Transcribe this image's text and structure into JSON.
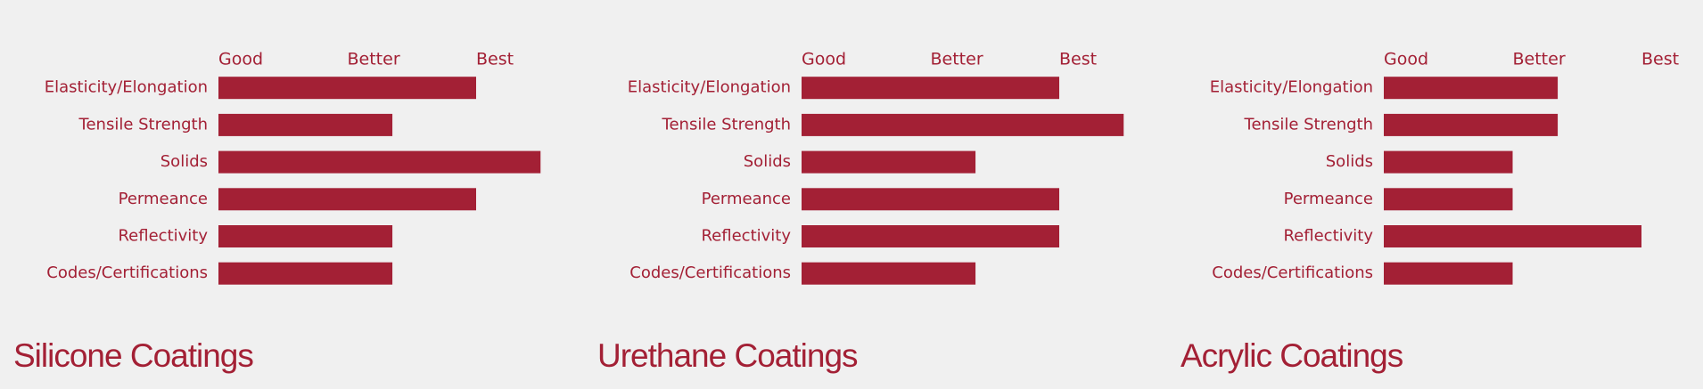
{
  "chart_data": [
    {
      "type": "bar",
      "orientation": "horizontal",
      "title": "Silicone Coatings",
      "color": "#a32035",
      "categories": [
        "Elasticity/Elongation",
        "Tensile Strength",
        "Solids",
        "Permeance",
        "Reflectivity",
        "Codes/Certifications"
      ],
      "values": [
        2,
        1.35,
        2.5,
        2,
        1.35,
        1.35
      ],
      "xlim": [
        0,
        2.5
      ],
      "xticks": [
        {
          "value": 0,
          "label": "Good"
        },
        {
          "value": 1,
          "label": "Better"
        },
        {
          "value": 2,
          "label": "Best"
        }
      ]
    },
    {
      "type": "bar",
      "orientation": "horizontal",
      "title": "Urethane Coatings",
      "color": "#a32035",
      "categories": [
        "Elasticity/Elongation",
        "Tensile Strength",
        "Solids",
        "Permeance",
        "Reflectivity",
        "Codes/Certifications"
      ],
      "values": [
        2,
        2.5,
        1.35,
        2,
        2,
        1.35
      ],
      "xlim": [
        0,
        2.5
      ],
      "xticks": [
        {
          "value": 0,
          "label": "Good"
        },
        {
          "value": 1,
          "label": "Better"
        },
        {
          "value": 2,
          "label": "Best"
        }
      ]
    },
    {
      "type": "bar",
      "orientation": "horizontal",
      "title": "Acrylic Coatings",
      "color": "#a32035",
      "categories": [
        "Elasticity/Elongation",
        "Tensile Strength",
        "Solids",
        "Permeance",
        "Reflectivity",
        "Codes/Certifications"
      ],
      "values": [
        1.35,
        1.35,
        1,
        1,
        2,
        1
      ],
      "xlim": [
        0,
        2.5
      ],
      "xticks": [
        {
          "value": 0,
          "label": "Good"
        },
        {
          "value": 1,
          "label": "Better"
        },
        {
          "value": 2,
          "label": "Best"
        }
      ]
    }
  ]
}
